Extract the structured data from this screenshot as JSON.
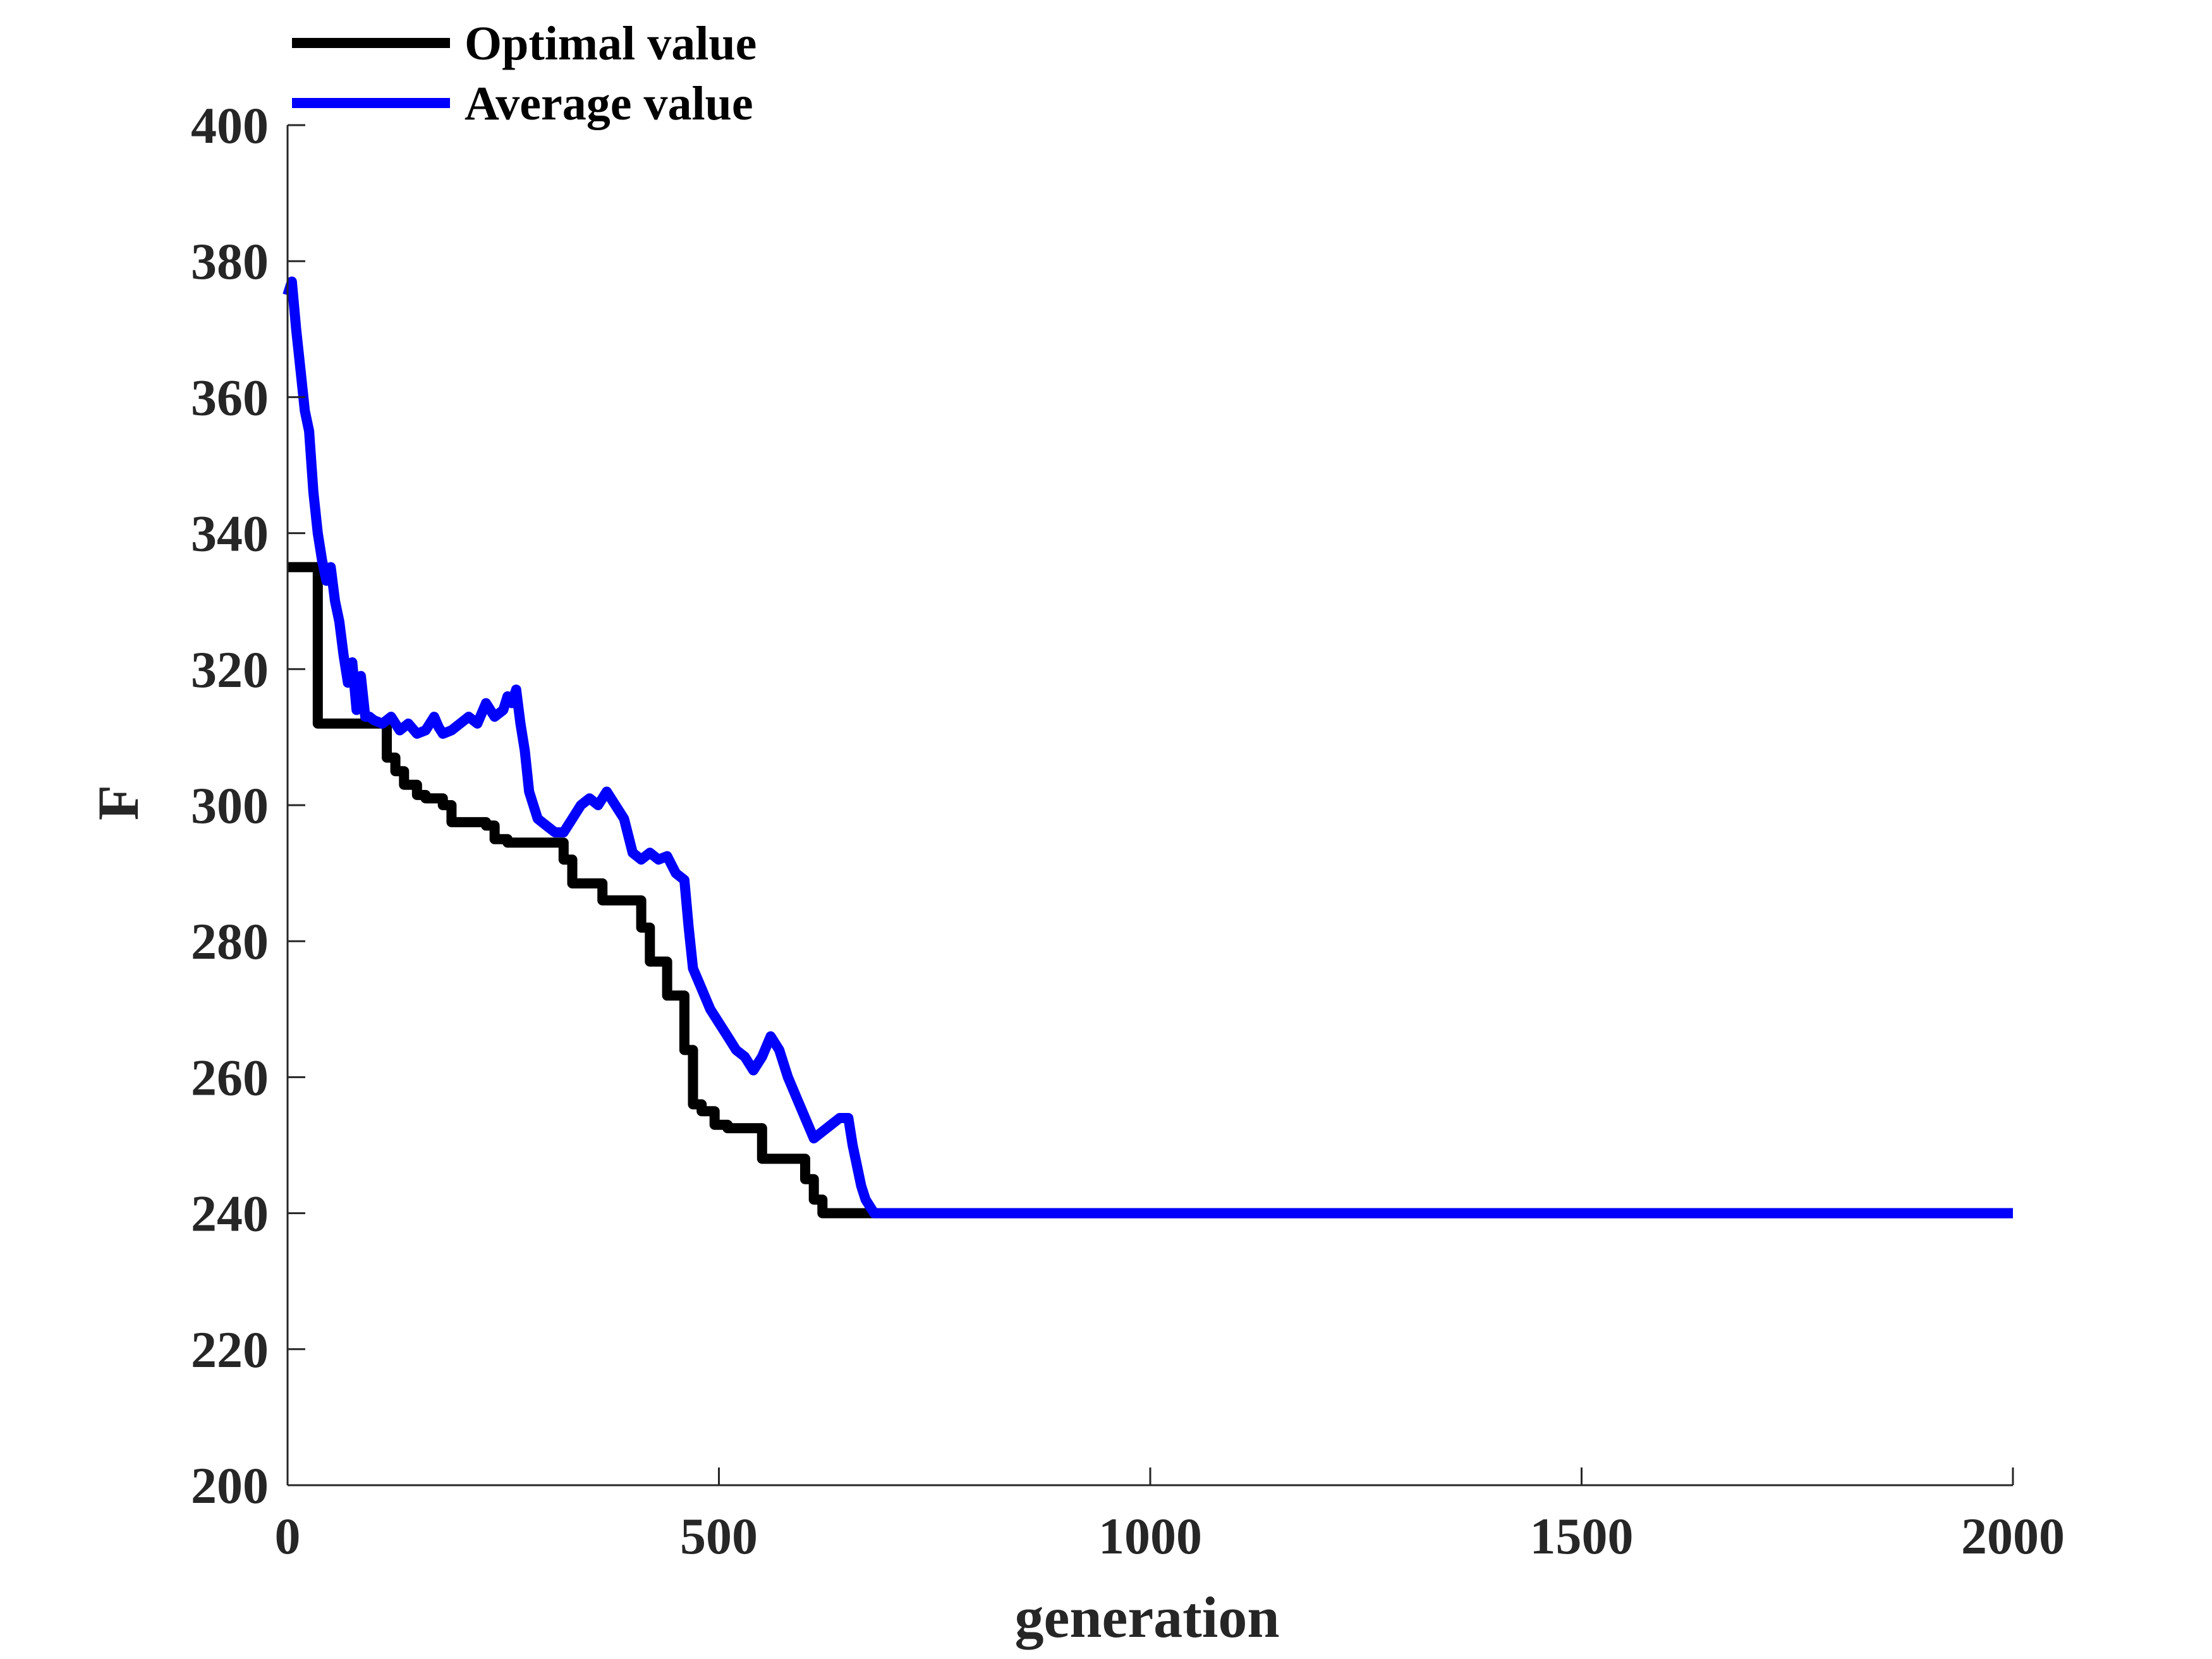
{
  "chart_data": {
    "type": "line",
    "xlabel": "generation",
    "ylabel": "F",
    "xlim": [
      0,
      2000
    ],
    "ylim": [
      200,
      400
    ],
    "xticks": [
      0,
      500,
      1000,
      1500,
      2000
    ],
    "yticks": [
      200,
      220,
      240,
      260,
      280,
      300,
      320,
      340,
      360,
      380,
      400
    ],
    "grid": false,
    "legend_position": "top-left, above the axes",
    "series": [
      {
        "name": "Optimal value",
        "color": "#000000",
        "style": "step",
        "x": [
          0,
          25,
          35,
          110,
          115,
          125,
          135,
          150,
          160,
          180,
          190,
          230,
          240,
          255,
          265,
          310,
          320,
          330,
          340,
          365,
          375,
          400,
          410,
          420,
          430,
          440,
          450,
          460,
          470,
          480,
          485,
          495,
          510,
          540,
          550,
          590,
          600,
          610,
          620,
          670,
          700,
          2000
        ],
        "y": [
          335,
          335,
          312,
          312,
          307,
          305,
          303,
          301.5,
          301,
          300,
          297.5,
          297,
          295,
          294.5,
          294.5,
          294.5,
          292,
          288.5,
          288.5,
          286,
          286,
          286,
          282,
          277,
          277,
          272,
          272,
          264,
          256,
          255,
          255,
          253,
          252.5,
          252.5,
          248,
          248,
          245,
          242,
          240,
          240,
          240,
          240
        ]
      },
      {
        "name": "Average value",
        "color": "#0000ff",
        "style": "line",
        "x": [
          0,
          5,
          10,
          15,
          20,
          25,
          30,
          35,
          40,
          45,
          50,
          55,
          60,
          65,
          70,
          75,
          80,
          85,
          90,
          95,
          100,
          110,
          120,
          130,
          140,
          150,
          160,
          170,
          175,
          180,
          190,
          200,
          210,
          220,
          230,
          240,
          250,
          255,
          260,
          265,
          270,
          275,
          280,
          285,
          290,
          300,
          310,
          320,
          330,
          340,
          350,
          360,
          370,
          380,
          390,
          400,
          410,
          420,
          430,
          440,
          450,
          460,
          465,
          470,
          480,
          490,
          500,
          510,
          520,
          530,
          540,
          550,
          560,
          570,
          580,
          590,
          600,
          610,
          620,
          630,
          640,
          650,
          655,
          660,
          665,
          670,
          675,
          680,
          700,
          2000
        ],
        "y": [
          375,
          377,
          370,
          364,
          358,
          355,
          346,
          340,
          336,
          333,
          335,
          330,
          327,
          322,
          318,
          321,
          314,
          319,
          313,
          313,
          312.5,
          312,
          313,
          311,
          312,
          310.5,
          311,
          313,
          311.5,
          310.5,
          311,
          312,
          313,
          312,
          315,
          313,
          314,
          316,
          315,
          317,
          312,
          308,
          302,
          300,
          298,
          297,
          296,
          296,
          298,
          300,
          301,
          300,
          302,
          300,
          298,
          293,
          292,
          293,
          292,
          292.5,
          290,
          289,
          282,
          276,
          273,
          270,
          268,
          266,
          264,
          263,
          261,
          263,
          266,
          264,
          260,
          257,
          254,
          251,
          252,
          253,
          254,
          254,
          250,
          247,
          244,
          242,
          241,
          240,
          240,
          240
        ]
      }
    ]
  }
}
